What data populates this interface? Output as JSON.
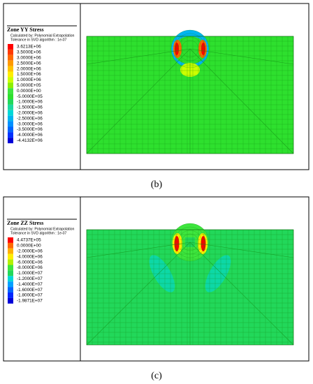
{
  "panels": [
    {
      "title": "Zone YY Stress",
      "notes": [
        "Calculated by: Polynomial Extrapolation",
        "Tolerance in SVD algorithm : 1e-07"
      ],
      "legend": [
        {
          "label": "3.6213E+06",
          "color": "#ff0000"
        },
        {
          "label": "3.5000E+06",
          "color": "#ff3a00"
        },
        {
          "label": "3.0000E+06",
          "color": "#ff6a00"
        },
        {
          "label": "2.5000E+06",
          "color": "#ff9a00"
        },
        {
          "label": "2.0000E+06",
          "color": "#ffc400"
        },
        {
          "label": "1.5000E+06",
          "color": "#ffee00"
        },
        {
          "label": "1.0000E+06",
          "color": "#ccff00"
        },
        {
          "label": "5.0000E+05",
          "color": "#8cf000"
        },
        {
          "label": "0.0000E+00",
          "color": "#3ee63e"
        },
        {
          "label": "-5.0000E+05",
          "color": "#2ee02e"
        },
        {
          "label": "-1.0000E+06",
          "color": "#22d85a"
        },
        {
          "label": "-1.5000E+06",
          "color": "#1ed8a0"
        },
        {
          "label": "-2.0000E+06",
          "color": "#00d8d8"
        },
        {
          "label": "-2.5000E+06",
          "color": "#00b4f0"
        },
        {
          "label": "-3.0000E+06",
          "color": "#0090ff"
        },
        {
          "label": "-3.5000E+06",
          "color": "#0064ff"
        },
        {
          "label": "-4.0000E+06",
          "color": "#0032ff"
        },
        {
          "label": "-4.4132E+06",
          "color": "#0000d8"
        }
      ],
      "caption": "(b)"
    },
    {
      "title": "Zone ZZ Stress",
      "notes": [
        "Calculated by: Polynomial Extrapolation",
        "Tolerance in SVD algorithm : 1e-07"
      ],
      "legend": [
        {
          "label": "4.4737E+05",
          "color": "#ff0000"
        },
        {
          "label": "0.0000E+00",
          "color": "#ff6a00"
        },
        {
          "label": "-2.0000E+06",
          "color": "#ffb000"
        },
        {
          "label": "-4.0000E+06",
          "color": "#ffee00"
        },
        {
          "label": "-6.0000E+06",
          "color": "#b4f000"
        },
        {
          "label": "-8.0000E+06",
          "color": "#3ee63e"
        },
        {
          "label": "-1.0000E+07",
          "color": "#22d85a"
        },
        {
          "label": "-1.2000E+07",
          "color": "#00d8d8"
        },
        {
          "label": "-1.4000E+07",
          "color": "#00a0ff"
        },
        {
          "label": "-1.6000E+07",
          "color": "#0064ff"
        },
        {
          "label": "-1.8000E+07",
          "color": "#0028ff"
        },
        {
          "label": "-1.9871E+07",
          "color": "#0000d8"
        }
      ],
      "caption": "(c)"
    }
  ]
}
